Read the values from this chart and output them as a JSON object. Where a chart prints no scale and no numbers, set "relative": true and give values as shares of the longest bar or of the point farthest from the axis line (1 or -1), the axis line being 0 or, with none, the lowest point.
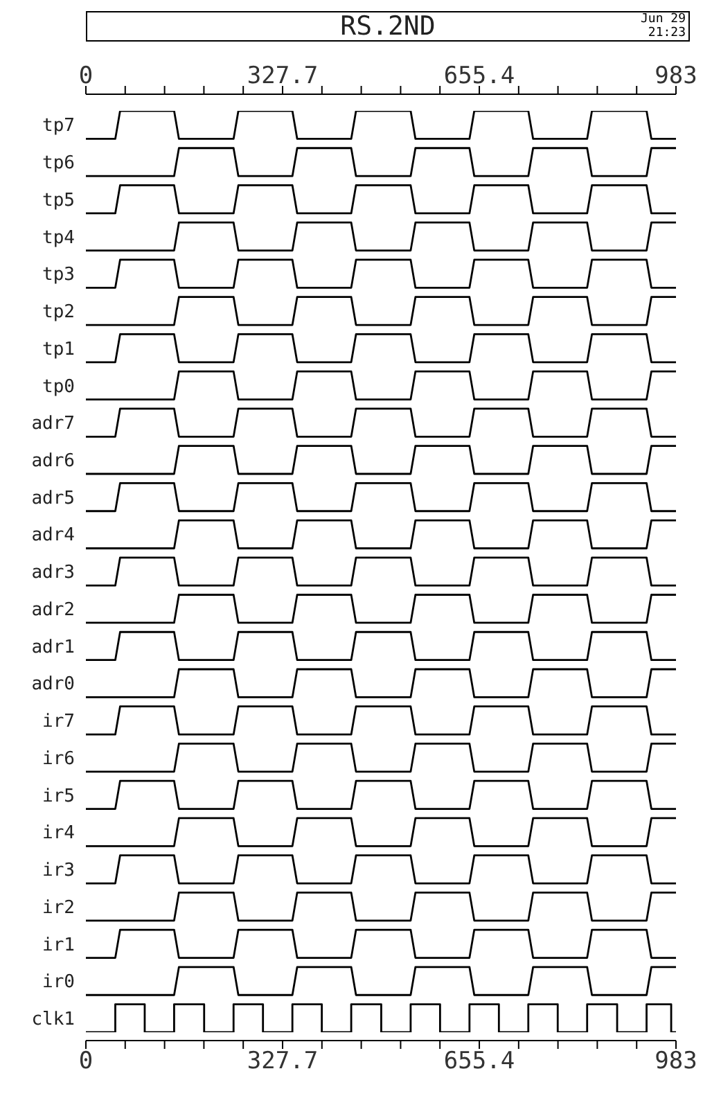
{
  "chart_data": {
    "type": "line",
    "title": "RS.2ND",
    "annotations": [
      "Jun 29",
      "21:23"
    ],
    "marker": "none",
    "relative": true,
    "xlim": [
      0,
      983
    ],
    "xticks": [
      0,
      {
        "value": 65.5,
        "label": null
      },
      {
        "value": 131.1,
        "label": null
      },
      {
        "value": 196.6,
        "label": null
      },
      {
        "value": 262.1,
        "label": null
      },
      327.7,
      {
        "value": 393.2,
        "label": null
      },
      {
        "value": 458.7,
        "label": null
      },
      {
        "value": 524.3,
        "label": null
      },
      {
        "value": 589.8,
        "label": null
      },
      655.4,
      {
        "value": 720.9,
        "label": null
      },
      {
        "value": 786.4,
        "label": null
      },
      {
        "value": 851.9,
        "label": null
      },
      {
        "value": 917.5,
        "label": null
      },
      983
    ],
    "x2lim": [
      0,
      983
    ],
    "x2ticks": [
      0,
      {
        "value": 65.5,
        "label": null
      },
      {
        "value": 131.1,
        "label": null
      },
      {
        "value": 196.6,
        "label": null
      },
      {
        "value": 262.1,
        "label": null
      },
      327.7,
      {
        "value": 393.2,
        "label": null
      },
      {
        "value": 458.7,
        "label": null
      },
      {
        "value": 524.3,
        "label": null
      },
      {
        "value": 589.8,
        "label": null
      },
      655.4,
      {
        "value": 720.9,
        "label": null
      },
      {
        "value": 786.4,
        "label": null
      },
      {
        "value": 851.9,
        "label": null
      },
      {
        "value": 917.5,
        "label": null
      },
      983
    ],
    "series": [
      {
        "name": "tp7",
        "color": "#000000",
        "x": [
          0,
          49,
          57,
          147,
          155,
          246,
          254,
          344,
          352,
          442,
          450,
          541,
          549,
          639,
          647,
          737,
          745,
          835,
          843,
          934,
          942,
          983
        ],
        "values": [
          0.9696,
          0.9696,
          1,
          1,
          0.9696,
          0.9696,
          1,
          1,
          0.9696,
          0.9696,
          1,
          1,
          0.9696,
          0.9696,
          1,
          1,
          0.9696,
          0.9696,
          1,
          1,
          0.9696,
          0.9696
        ]
      },
      {
        "name": "tp6",
        "color": "#000000",
        "x": [
          0,
          147,
          155,
          246,
          254,
          344,
          352,
          442,
          450,
          541,
          549,
          639,
          647,
          737,
          745,
          835,
          843,
          934,
          942,
          983
        ],
        "values": [
          0.9292,
          0.9292,
          0.9596,
          0.9596,
          0.9292,
          0.9292,
          0.9596,
          0.9596,
          0.9292,
          0.9292,
          0.9596,
          0.9596,
          0.9292,
          0.9292,
          0.9596,
          0.9596,
          0.9292,
          0.9292,
          0.9596,
          0.9596
        ]
      },
      {
        "name": "tp5",
        "color": "#000000",
        "x": [
          0,
          49,
          57,
          147,
          155,
          246,
          254,
          344,
          352,
          442,
          450,
          541,
          549,
          639,
          647,
          737,
          745,
          835,
          843,
          934,
          942,
          983
        ],
        "values": [
          0.8888,
          0.8888,
          0.9192,
          0.9192,
          0.8888,
          0.8888,
          0.9192,
          0.9192,
          0.8888,
          0.8888,
          0.9192,
          0.9192,
          0.8888,
          0.8888,
          0.9192,
          0.9192,
          0.8888,
          0.8888,
          0.9192,
          0.9192,
          0.8888,
          0.8888
        ]
      },
      {
        "name": "tp4",
        "color": "#000000",
        "x": [
          0,
          147,
          155,
          246,
          254,
          344,
          352,
          442,
          450,
          541,
          549,
          639,
          647,
          737,
          745,
          835,
          843,
          934,
          942,
          983
        ],
        "values": [
          0.8484,
          0.8484,
          0.8788,
          0.8788,
          0.8484,
          0.8484,
          0.8788,
          0.8788,
          0.8484,
          0.8484,
          0.8788,
          0.8788,
          0.8484,
          0.8484,
          0.8788,
          0.8788,
          0.8484,
          0.8484,
          0.8788,
          0.8788
        ]
      },
      {
        "name": "tp3",
        "color": "#000000",
        "x": [
          0,
          49,
          57,
          147,
          155,
          246,
          254,
          344,
          352,
          442,
          450,
          541,
          549,
          639,
          647,
          737,
          745,
          835,
          843,
          934,
          942,
          983
        ],
        "values": [
          0.808,
          0.808,
          0.8384,
          0.8384,
          0.808,
          0.808,
          0.8384,
          0.8384,
          0.808,
          0.808,
          0.8384,
          0.8384,
          0.808,
          0.808,
          0.8384,
          0.8384,
          0.808,
          0.808,
          0.8384,
          0.8384,
          0.808,
          0.808
        ]
      },
      {
        "name": "tp2",
        "color": "#000000",
        "x": [
          0,
          147,
          155,
          246,
          254,
          344,
          352,
          442,
          450,
          541,
          549,
          639,
          647,
          737,
          745,
          835,
          843,
          934,
          942,
          983
        ],
        "values": [
          0.7676,
          0.7676,
          0.798,
          0.798,
          0.7676,
          0.7676,
          0.798,
          0.798,
          0.7676,
          0.7676,
          0.798,
          0.798,
          0.7676,
          0.7676,
          0.798,
          0.798,
          0.7676,
          0.7676,
          0.798,
          0.798
        ]
      },
      {
        "name": "tp1",
        "color": "#000000",
        "x": [
          0,
          49,
          57,
          147,
          155,
          246,
          254,
          344,
          352,
          442,
          450,
          541,
          549,
          639,
          647,
          737,
          745,
          835,
          843,
          934,
          942,
          983
        ],
        "values": [
          0.7272,
          0.7272,
          0.7576,
          0.7576,
          0.7272,
          0.7272,
          0.7576,
          0.7576,
          0.7272,
          0.7272,
          0.7576,
          0.7576,
          0.7272,
          0.7272,
          0.7576,
          0.7576,
          0.7272,
          0.7272,
          0.7576,
          0.7576,
          0.7272,
          0.7272
        ]
      },
      {
        "name": "tp0",
        "color": "#000000",
        "x": [
          0,
          147,
          155,
          246,
          254,
          344,
          352,
          442,
          450,
          541,
          549,
          639,
          647,
          737,
          745,
          835,
          843,
          934,
          942,
          983
        ],
        "values": [
          0.6868,
          0.6868,
          0.7172,
          0.7172,
          0.6868,
          0.6868,
          0.7172,
          0.7172,
          0.6868,
          0.6868,
          0.7172,
          0.7172,
          0.6868,
          0.6868,
          0.7172,
          0.7172,
          0.6868,
          0.6868,
          0.7172,
          0.7172
        ]
      },
      {
        "name": "adr7",
        "color": "#000000",
        "x": [
          0,
          49,
          57,
          147,
          155,
          246,
          254,
          344,
          352,
          442,
          450,
          541,
          549,
          639,
          647,
          737,
          745,
          835,
          843,
          934,
          942,
          983
        ],
        "values": [
          0.6464,
          0.6464,
          0.6768,
          0.6768,
          0.6464,
          0.6464,
          0.6768,
          0.6768,
          0.6464,
          0.6464,
          0.6768,
          0.6768,
          0.6464,
          0.6464,
          0.6768,
          0.6768,
          0.6464,
          0.6464,
          0.6768,
          0.6768,
          0.6464,
          0.6464
        ]
      },
      {
        "name": "adr6",
        "color": "#000000",
        "x": [
          0,
          147,
          155,
          246,
          254,
          344,
          352,
          442,
          450,
          541,
          549,
          639,
          647,
          737,
          745,
          835,
          843,
          934,
          942,
          983
        ],
        "values": [
          0.606,
          0.606,
          0.6364,
          0.6364,
          0.606,
          0.606,
          0.6364,
          0.6364,
          0.606,
          0.606,
          0.6364,
          0.6364,
          0.606,
          0.606,
          0.6364,
          0.6364,
          0.606,
          0.606,
          0.6364,
          0.6364
        ]
      },
      {
        "name": "adr5",
        "color": "#000000",
        "x": [
          0,
          49,
          57,
          147,
          155,
          246,
          254,
          344,
          352,
          442,
          450,
          541,
          549,
          639,
          647,
          737,
          745,
          835,
          843,
          934,
          942,
          983
        ],
        "values": [
          0.5656,
          0.5656,
          0.596,
          0.596,
          0.5656,
          0.5656,
          0.596,
          0.596,
          0.5656,
          0.5656,
          0.596,
          0.596,
          0.5656,
          0.5656,
          0.596,
          0.596,
          0.5656,
          0.5656,
          0.596,
          0.596,
          0.5656,
          0.5656
        ]
      },
      {
        "name": "adr4",
        "color": "#000000",
        "x": [
          0,
          147,
          155,
          246,
          254,
          344,
          352,
          442,
          450,
          541,
          549,
          639,
          647,
          737,
          745,
          835,
          843,
          934,
          942,
          983
        ],
        "values": [
          0.5252,
          0.5252,
          0.5556,
          0.5556,
          0.5252,
          0.5252,
          0.5556,
          0.5556,
          0.5252,
          0.5252,
          0.5556,
          0.5556,
          0.5252,
          0.5252,
          0.5556,
          0.5556,
          0.5252,
          0.5252,
          0.5556,
          0.5556
        ]
      },
      {
        "name": "adr3",
        "color": "#000000",
        "x": [
          0,
          49,
          57,
          147,
          155,
          246,
          254,
          344,
          352,
          442,
          450,
          541,
          549,
          639,
          647,
          737,
          745,
          835,
          843,
          934,
          942,
          983
        ],
        "values": [
          0.4848,
          0.4848,
          0.5152,
          0.5152,
          0.4848,
          0.4848,
          0.5152,
          0.5152,
          0.4848,
          0.4848,
          0.5152,
          0.5152,
          0.4848,
          0.4848,
          0.5152,
          0.5152,
          0.4848,
          0.4848,
          0.5152,
          0.5152,
          0.4848,
          0.4848
        ]
      },
      {
        "name": "adr2",
        "color": "#000000",
        "x": [
          0,
          147,
          155,
          246,
          254,
          344,
          352,
          442,
          450,
          541,
          549,
          639,
          647,
          737,
          745,
          835,
          843,
          934,
          942,
          983
        ],
        "values": [
          0.4444,
          0.4444,
          0.4748,
          0.4748,
          0.4444,
          0.4444,
          0.4748,
          0.4748,
          0.4444,
          0.4444,
          0.4748,
          0.4748,
          0.4444,
          0.4444,
          0.4748,
          0.4748,
          0.4444,
          0.4444,
          0.4748,
          0.4748
        ]
      },
      {
        "name": "adr1",
        "color": "#000000",
        "x": [
          0,
          49,
          57,
          147,
          155,
          246,
          254,
          344,
          352,
          442,
          450,
          541,
          549,
          639,
          647,
          737,
          745,
          835,
          843,
          934,
          942,
          983
        ],
        "values": [
          0.404,
          0.404,
          0.4344,
          0.4344,
          0.404,
          0.404,
          0.4344,
          0.4344,
          0.404,
          0.404,
          0.4344,
          0.4344,
          0.404,
          0.404,
          0.4344,
          0.4344,
          0.404,
          0.404,
          0.4344,
          0.4344,
          0.404,
          0.404
        ]
      },
      {
        "name": "adr0",
        "color": "#000000",
        "x": [
          0,
          147,
          155,
          246,
          254,
          344,
          352,
          442,
          450,
          541,
          549,
          639,
          647,
          737,
          745,
          835,
          843,
          934,
          942,
          983
        ],
        "values": [
          0.3636,
          0.3636,
          0.394,
          0.394,
          0.3636,
          0.3636,
          0.394,
          0.394,
          0.3636,
          0.3636,
          0.394,
          0.394,
          0.3636,
          0.3636,
          0.394,
          0.394,
          0.3636,
          0.3636,
          0.394,
          0.394
        ]
      },
      {
        "name": "ir7",
        "color": "#000000",
        "x": [
          0,
          49,
          57,
          147,
          155,
          246,
          254,
          344,
          352,
          442,
          450,
          541,
          549,
          639,
          647,
          737,
          745,
          835,
          843,
          934,
          942,
          983
        ],
        "values": [
          0.3232,
          0.3232,
          0.3536,
          0.3536,
          0.3232,
          0.3232,
          0.3536,
          0.3536,
          0.3232,
          0.3232,
          0.3536,
          0.3536,
          0.3232,
          0.3232,
          0.3536,
          0.3536,
          0.3232,
          0.3232,
          0.3536,
          0.3536,
          0.3232,
          0.3232
        ]
      },
      {
        "name": "ir6",
        "color": "#000000",
        "x": [
          0,
          147,
          155,
          246,
          254,
          344,
          352,
          442,
          450,
          541,
          549,
          639,
          647,
          737,
          745,
          835,
          843,
          934,
          942,
          983
        ],
        "values": [
          0.2828,
          0.2828,
          0.3132,
          0.3132,
          0.2828,
          0.2828,
          0.3132,
          0.3132,
          0.2828,
          0.2828,
          0.3132,
          0.3132,
          0.2828,
          0.2828,
          0.3132,
          0.3132,
          0.2828,
          0.2828,
          0.3132,
          0.3132
        ]
      },
      {
        "name": "ir5",
        "color": "#000000",
        "x": [
          0,
          49,
          57,
          147,
          155,
          246,
          254,
          344,
          352,
          442,
          450,
          541,
          549,
          639,
          647,
          737,
          745,
          835,
          843,
          934,
          942,
          983
        ],
        "values": [
          0.2424,
          0.2424,
          0.2728,
          0.2728,
          0.2424,
          0.2424,
          0.2728,
          0.2728,
          0.2424,
          0.2424,
          0.2728,
          0.2728,
          0.2424,
          0.2424,
          0.2728,
          0.2728,
          0.2424,
          0.2424,
          0.2728,
          0.2728,
          0.2424,
          0.2424
        ]
      },
      {
        "name": "ir4",
        "color": "#000000",
        "x": [
          0,
          147,
          155,
          246,
          254,
          344,
          352,
          442,
          450,
          541,
          549,
          639,
          647,
          737,
          745,
          835,
          843,
          934,
          942,
          983
        ],
        "values": [
          0.202,
          0.202,
          0.2324,
          0.2324,
          0.202,
          0.202,
          0.2324,
          0.2324,
          0.202,
          0.202,
          0.2324,
          0.2324,
          0.202,
          0.202,
          0.2324,
          0.2324,
          0.202,
          0.202,
          0.2324,
          0.2324
        ]
      },
      {
        "name": "ir3",
        "color": "#000000",
        "x": [
          0,
          49,
          57,
          147,
          155,
          246,
          254,
          344,
          352,
          442,
          450,
          541,
          549,
          639,
          647,
          737,
          745,
          835,
          843,
          934,
          942,
          983
        ],
        "values": [
          0.1616,
          0.1616,
          0.192,
          0.192,
          0.1616,
          0.1616,
          0.192,
          0.192,
          0.1616,
          0.1616,
          0.192,
          0.192,
          0.1616,
          0.1616,
          0.192,
          0.192,
          0.1616,
          0.1616,
          0.192,
          0.192,
          0.1616,
          0.1616
        ]
      },
      {
        "name": "ir2",
        "color": "#000000",
        "x": [
          0,
          147,
          155,
          246,
          254,
          344,
          352,
          442,
          450,
          541,
          549,
          639,
          647,
          737,
          745,
          835,
          843,
          934,
          942,
          983
        ],
        "values": [
          0.1212,
          0.1212,
          0.1516,
          0.1516,
          0.1212,
          0.1212,
          0.1516,
          0.1516,
          0.1212,
          0.1212,
          0.1516,
          0.1516,
          0.1212,
          0.1212,
          0.1516,
          0.1516,
          0.1212,
          0.1212,
          0.1516,
          0.1516
        ]
      },
      {
        "name": "ir1",
        "color": "#000000",
        "x": [
          0,
          49,
          57,
          147,
          155,
          246,
          254,
          344,
          352,
          442,
          450,
          541,
          549,
          639,
          647,
          737,
          745,
          835,
          843,
          934,
          942,
          983
        ],
        "values": [
          0.0808,
          0.0808,
          0.1112,
          0.1112,
          0.0808,
          0.0808,
          0.1112,
          0.1112,
          0.0808,
          0.0808,
          0.1112,
          0.1112,
          0.0808,
          0.0808,
          0.1112,
          0.1112,
          0.0808,
          0.0808,
          0.1112,
          0.1112,
          0.0808,
          0.0808
        ]
      },
      {
        "name": "ir0",
        "color": "#000000",
        "x": [
          0,
          147,
          155,
          246,
          254,
          344,
          352,
          442,
          450,
          541,
          549,
          639,
          647,
          737,
          745,
          835,
          843,
          934,
          942,
          983
        ],
        "values": [
          0.0404,
          0.0404,
          0.0708,
          0.0708,
          0.0404,
          0.0404,
          0.0708,
          0.0708,
          0.0404,
          0.0404,
          0.0708,
          0.0708,
          0.0404,
          0.0404,
          0.0708,
          0.0708,
          0.0404,
          0.0404,
          0.0708,
          0.0708
        ]
      },
      {
        "name": "clk1",
        "color": "#000000",
        "x": [
          0,
          49,
          49,
          98,
          98,
          147,
          147,
          197,
          197,
          246,
          246,
          295,
          295,
          344,
          344,
          393,
          393,
          442,
          442,
          492,
          492,
          541,
          541,
          590,
          590,
          639,
          639,
          688,
          688,
          737,
          737,
          786,
          786,
          835,
          835,
          885,
          885,
          934,
          934,
          975,
          975,
          983
        ],
        "values": [
          0,
          0,
          0.0304,
          0.0304,
          0,
          0,
          0.0304,
          0.0304,
          0,
          0,
          0.0304,
          0.0304,
          0,
          0,
          0.0304,
          0.0304,
          0,
          0,
          0.0304,
          0.0304,
          0,
          0,
          0.0304,
          0.0304,
          0,
          0,
          0.0304,
          0.0304,
          0,
          0,
          0.0304,
          0.0304,
          0,
          0,
          0.0304,
          0.0304,
          0,
          0,
          0.0304,
          0.0304,
          0,
          0
        ]
      }
    ]
  }
}
